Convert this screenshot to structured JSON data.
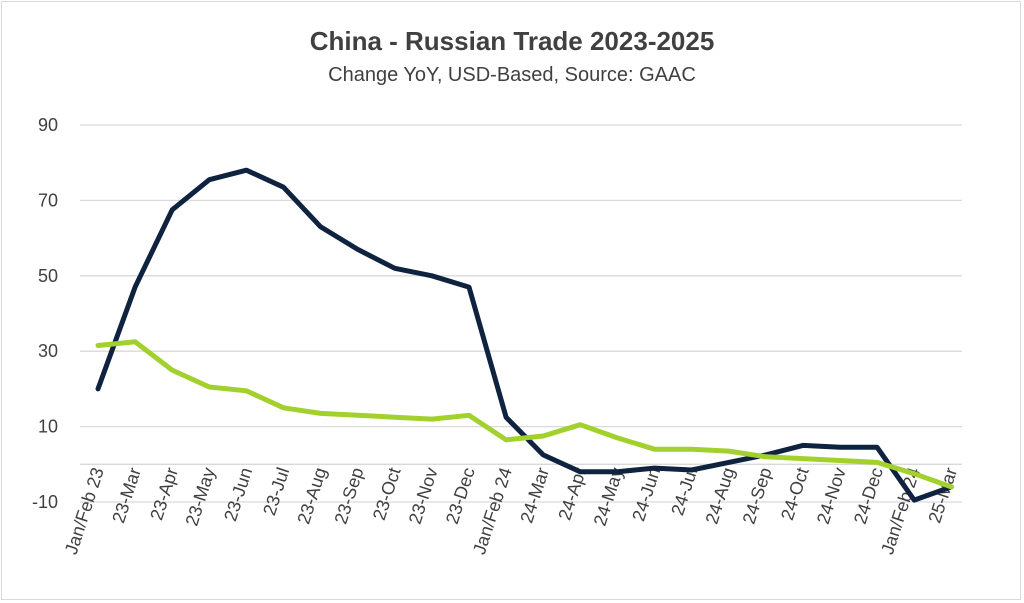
{
  "chart_data": {
    "type": "line",
    "title": "China - Russian Trade 2023-2025",
    "subtitle": "Change YoY, USD-Based, Source: GAAC",
    "xlabel": "",
    "ylabel": "",
    "ylim": [
      -10,
      90
    ],
    "yticks": [
      -10,
      10,
      30,
      50,
      70,
      90
    ],
    "grid": true,
    "categories": [
      "Jan/Feb 23",
      "23-Mar",
      "23-Apr",
      "23-May",
      "23-Jun",
      "23-Jul",
      "23-Aug",
      "23-Sep",
      "23-Oct",
      "23-Nov",
      "23-Dec",
      "Jan/Feb 24",
      "24-Mar",
      "24-Apr",
      "24-May",
      "24-Jun",
      "24-Jul",
      "24-Aug",
      "24-Sep",
      "24-Oct",
      "24-Nov",
      "24-Dec",
      "Jan/Feb 24",
      "25-Mar"
    ],
    "series": [
      {
        "color": "#0f2340",
        "values": [
          20,
          47,
          67.5,
          75.5,
          78,
          73.5,
          63,
          57,
          52,
          50,
          47,
          12.5,
          2.5,
          -2,
          -2,
          -1,
          -1.5,
          0.5,
          2.5,
          5,
          4.5,
          4.5,
          -9.5,
          -6
        ]
      },
      {
        "color": "#a2d12d",
        "values": [
          31.5,
          32.5,
          25,
          20.5,
          19.5,
          15,
          13.5,
          13,
          12.5,
          12,
          13,
          6.5,
          7.5,
          10.5,
          7,
          4,
          4,
          3.5,
          2,
          1.5,
          1,
          0.5,
          -2.5,
          -6
        ]
      }
    ]
  }
}
